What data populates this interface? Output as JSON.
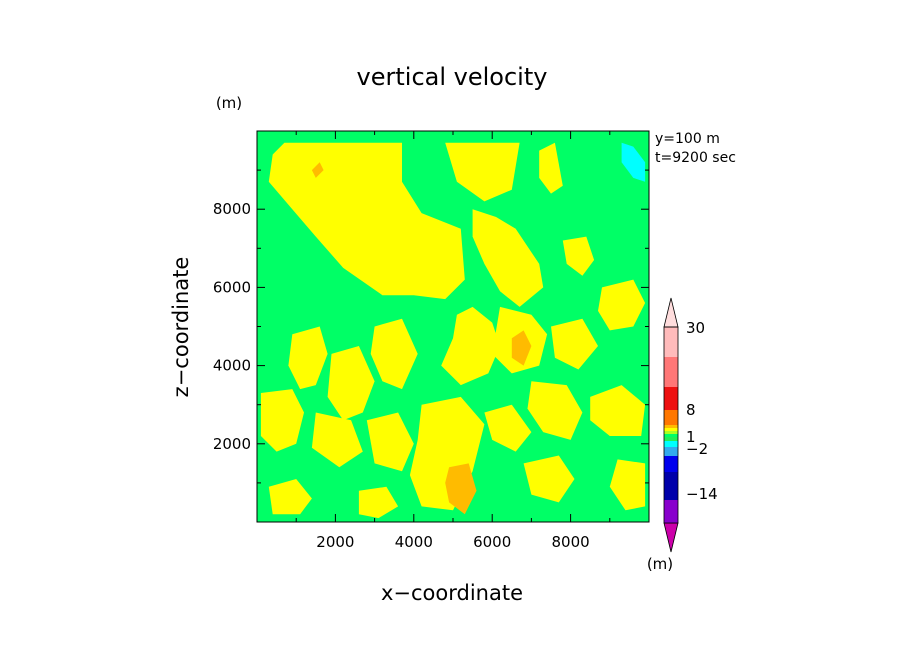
{
  "chart_data": {
    "type": "heatmap",
    "title": "vertical velocity",
    "xlabel": "x−coordinate",
    "ylabel": "z−coordinate",
    "x_unit": "(m)",
    "y_unit": "(m)",
    "xlim": [
      0,
      10000
    ],
    "ylim": [
      0,
      10000
    ],
    "x_ticks": [
      2000,
      4000,
      6000,
      8000
    ],
    "y_ticks": [
      2000,
      4000,
      6000,
      8000
    ],
    "x_tick_labels": [
      "2000",
      "4000",
      "6000",
      "8000"
    ],
    "y_tick_labels": [
      "2000",
      "4000",
      "6000",
      "8000"
    ],
    "annotations": [
      "y=100 m",
      "t=9200 sec"
    ],
    "colorbar": {
      "unit": "(m)",
      "labels": [
        {
          "value": 30,
          "text": "30"
        },
        {
          "value": 8,
          "text": "8"
        },
        {
          "value": 1,
          "text": "1"
        },
        {
          "value": -2,
          "text": "−2"
        },
        {
          "value": -14,
          "text": "−14"
        }
      ],
      "levels": [
        -30,
        -14,
        -8,
        -4,
        -2,
        -1,
        -0.5,
        0,
        0.5,
        1,
        2,
        4,
        8,
        14,
        30
      ],
      "colors": [
        "#cc00aa",
        "#8800cc",
        "#0000aa",
        "#0000ee",
        "#33aaee",
        "#00ffff",
        "#22ee55",
        "#00ff66",
        "#aaff22",
        "#ffff00",
        "#ffbb00",
        "#ff7700",
        "#ee1111",
        "#ff7777",
        "#ffbbbb",
        "#ffdddd"
      ]
    },
    "background_color": "#00ff66",
    "regions": [
      {
        "color": "#ffff00",
        "points": [
          [
            700,
            9700
          ],
          [
            3700,
            9700
          ],
          [
            3700,
            8700
          ],
          [
            4200,
            7900
          ],
          [
            5200,
            7500
          ],
          [
            5300,
            6200
          ],
          [
            4800,
            5700
          ],
          [
            4000,
            5800
          ],
          [
            3200,
            5800
          ],
          [
            2200,
            6500
          ],
          [
            1500,
            7300
          ],
          [
            900,
            8000
          ],
          [
            300,
            8700
          ],
          [
            400,
            9400
          ]
        ]
      },
      {
        "color": "#ffff00",
        "points": [
          [
            4800,
            9700
          ],
          [
            6700,
            9700
          ],
          [
            6500,
            8500
          ],
          [
            5800,
            8200
          ],
          [
            5100,
            8700
          ]
        ]
      },
      {
        "color": "#ffff00",
        "points": [
          [
            7200,
            9500
          ],
          [
            7600,
            9700
          ],
          [
            7800,
            8600
          ],
          [
            7500,
            8400
          ],
          [
            7200,
            8800
          ]
        ]
      },
      {
        "color": "#ffff00",
        "points": [
          [
            5500,
            8000
          ],
          [
            6100,
            7800
          ],
          [
            6600,
            7500
          ],
          [
            7200,
            6600
          ],
          [
            7300,
            6000
          ],
          [
            6700,
            5500
          ],
          [
            6200,
            5900
          ],
          [
            5800,
            6600
          ],
          [
            5500,
            7300
          ]
        ]
      },
      {
        "color": "#ffff00",
        "points": [
          [
            7800,
            7200
          ],
          [
            8400,
            7300
          ],
          [
            8600,
            6700
          ],
          [
            8300,
            6300
          ],
          [
            7900,
            6600
          ]
        ]
      },
      {
        "color": "#ffff00",
        "points": [
          [
            5500,
            5500
          ],
          [
            6000,
            5100
          ],
          [
            6200,
            4500
          ],
          [
            5900,
            3800
          ],
          [
            5200,
            3500
          ],
          [
            4700,
            4000
          ],
          [
            5000,
            4700
          ],
          [
            5100,
            5300
          ]
        ]
      },
      {
        "color": "#ffff00",
        "points": [
          [
            6200,
            5500
          ],
          [
            7000,
            5300
          ],
          [
            7400,
            4800
          ],
          [
            7200,
            4000
          ],
          [
            6500,
            3800
          ],
          [
            6000,
            4300
          ]
        ]
      },
      {
        "color": "#ffff00",
        "points": [
          [
            8800,
            6000
          ],
          [
            9600,
            6200
          ],
          [
            9900,
            5600
          ],
          [
            9600,
            5000
          ],
          [
            9000,
            4900
          ],
          [
            8700,
            5400
          ]
        ]
      },
      {
        "color": "#ffff00",
        "points": [
          [
            7500,
            5000
          ],
          [
            8300,
            5200
          ],
          [
            8700,
            4500
          ],
          [
            8200,
            3900
          ],
          [
            7600,
            4200
          ]
        ]
      },
      {
        "color": "#ffff00",
        "points": [
          [
            900,
            4800
          ],
          [
            1600,
            5000
          ],
          [
            1800,
            4300
          ],
          [
            1500,
            3500
          ],
          [
            1100,
            3400
          ],
          [
            800,
            4000
          ]
        ]
      },
      {
        "color": "#ffff00",
        "points": [
          [
            1900,
            4300
          ],
          [
            2600,
            4500
          ],
          [
            3000,
            3600
          ],
          [
            2700,
            2800
          ],
          [
            2200,
            2600
          ],
          [
            1800,
            3200
          ]
        ]
      },
      {
        "color": "#ffff00",
        "points": [
          [
            3000,
            5000
          ],
          [
            3700,
            5200
          ],
          [
            4100,
            4300
          ],
          [
            3700,
            3400
          ],
          [
            3200,
            3600
          ],
          [
            2900,
            4300
          ]
        ]
      },
      {
        "color": "#ffff00",
        "points": [
          [
            100,
            3300
          ],
          [
            900,
            3400
          ],
          [
            1200,
            2800
          ],
          [
            1000,
            2000
          ],
          [
            500,
            1800
          ],
          [
            100,
            2200
          ]
        ]
      },
      {
        "color": "#ffff00",
        "points": [
          [
            1500,
            2800
          ],
          [
            2400,
            2600
          ],
          [
            2700,
            1800
          ],
          [
            2100,
            1400
          ],
          [
            1400,
            1900
          ]
        ]
      },
      {
        "color": "#ffff00",
        "points": [
          [
            2800,
            2600
          ],
          [
            3600,
            2800
          ],
          [
            4000,
            2000
          ],
          [
            3700,
            1300
          ],
          [
            3000,
            1500
          ]
        ]
      },
      {
        "color": "#ffff00",
        "points": [
          [
            4200,
            3000
          ],
          [
            5200,
            3200
          ],
          [
            5800,
            2500
          ],
          [
            5500,
            1300
          ],
          [
            5000,
            300
          ],
          [
            4200,
            400
          ],
          [
            3900,
            1200
          ],
          [
            4100,
            2100
          ]
        ]
      },
      {
        "color": "#ffff00",
        "points": [
          [
            5800,
            2800
          ],
          [
            6500,
            3000
          ],
          [
            7000,
            2300
          ],
          [
            6600,
            1800
          ],
          [
            6000,
            2100
          ]
        ]
      },
      {
        "color": "#ffff00",
        "points": [
          [
            7000,
            3600
          ],
          [
            7900,
            3500
          ],
          [
            8300,
            2800
          ],
          [
            8000,
            2100
          ],
          [
            7300,
            2300
          ],
          [
            6900,
            2900
          ]
        ]
      },
      {
        "color": "#ffff00",
        "points": [
          [
            8500,
            3200
          ],
          [
            9300,
            3500
          ],
          [
            9900,
            3000
          ],
          [
            9800,
            2200
          ],
          [
            9000,
            2200
          ],
          [
            8500,
            2600
          ]
        ]
      },
      {
        "color": "#ffff00",
        "points": [
          [
            6800,
            1500
          ],
          [
            7700,
            1700
          ],
          [
            8100,
            1100
          ],
          [
            7700,
            500
          ],
          [
            7000,
            700
          ]
        ]
      },
      {
        "color": "#ffff00",
        "points": [
          [
            9200,
            1600
          ],
          [
            9900,
            1500
          ],
          [
            9900,
            400
          ],
          [
            9400,
            300
          ],
          [
            9000,
            900
          ]
        ]
      },
      {
        "color": "#ffff00",
        "points": [
          [
            300,
            900
          ],
          [
            1000,
            1100
          ],
          [
            1400,
            600
          ],
          [
            1100,
            200
          ],
          [
            400,
            200
          ]
        ]
      },
      {
        "color": "#ffff00",
        "points": [
          [
            2600,
            800
          ],
          [
            3300,
            900
          ],
          [
            3600,
            400
          ],
          [
            3100,
            100
          ],
          [
            2600,
            200
          ]
        ]
      },
      {
        "color": "#ffbb00",
        "points": [
          [
            1400,
            9000
          ],
          [
            1600,
            9200
          ],
          [
            1700,
            9000
          ],
          [
            1500,
            8800
          ]
        ]
      },
      {
        "color": "#ffbb00",
        "points": [
          [
            6500,
            4700
          ],
          [
            6800,
            4900
          ],
          [
            7000,
            4500
          ],
          [
            6800,
            4000
          ],
          [
            6500,
            4200
          ]
        ]
      },
      {
        "color": "#ffbb00",
        "points": [
          [
            4900,
            1400
          ],
          [
            5400,
            1500
          ],
          [
            5600,
            800
          ],
          [
            5300,
            200
          ],
          [
            4900,
            500
          ],
          [
            4800,
            1000
          ]
        ]
      },
      {
        "color": "#00ffff",
        "points": [
          [
            9300,
            9700
          ],
          [
            9600,
            9600
          ],
          [
            9900,
            9200
          ],
          [
            9900,
            8700
          ],
          [
            9600,
            8800
          ],
          [
            9300,
            9200
          ]
        ]
      }
    ]
  }
}
